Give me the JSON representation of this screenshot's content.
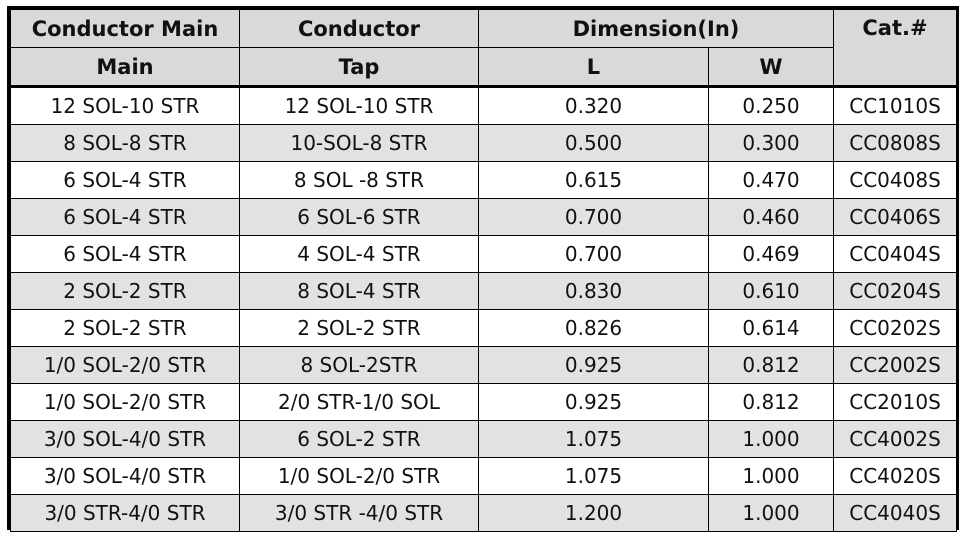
{
  "headers": {
    "conductor_main_line1": "Conductor Main",
    "conductor_main_line2": "Main",
    "conductor_tap_line1": "Conductor",
    "conductor_tap_line2": "Tap",
    "dimension": "Dimension(In)",
    "dim_l": "L",
    "dim_w": "W",
    "cat": "Cat.#"
  },
  "rows": [
    {
      "main": "12 SOL-10 STR",
      "tap": "12 SOL-10 STR",
      "l": "0.320",
      "w": "0.250",
      "cat": "CC1010S"
    },
    {
      "main": "8 SOL-8 STR",
      "tap": "10-SOL-8 STR",
      "l": "0.500",
      "w": "0.300",
      "cat": "CC0808S"
    },
    {
      "main": "6 SOL-4 STR",
      "tap": "8 SOL -8 STR",
      "l": "0.615",
      "w": "0.470",
      "cat": "CC0408S"
    },
    {
      "main": "6 SOL-4 STR",
      "tap": "6 SOL-6 STR",
      "l": "0.700",
      "w": "0.460",
      "cat": "CC0406S"
    },
    {
      "main": "6 SOL-4 STR",
      "tap": "4 SOL-4 STR",
      "l": "0.700",
      "w": "0.469",
      "cat": "CC0404S"
    },
    {
      "main": "2 SOL-2 STR",
      "tap": "8 SOL-4 STR",
      "l": "0.830",
      "w": "0.610",
      "cat": "CC0204S"
    },
    {
      "main": "2 SOL-2 STR",
      "tap": "2 SOL-2 STR",
      "l": "0.826",
      "w": "0.614",
      "cat": "CC0202S"
    },
    {
      "main": "1/0 SOL-2/0 STR",
      "tap": "8 SOL-2STR",
      "l": "0.925",
      "w": "0.812",
      "cat": "CC2002S"
    },
    {
      "main": "1/0 SOL-2/0 STR",
      "tap": "2/0 STR-1/0 SOL",
      "l": "0.925",
      "w": "0.812",
      "cat": "CC2010S"
    },
    {
      "main": "3/0 SOL-4/0 STR",
      "tap": "6 SOL-2 STR",
      "l": "1.075",
      "w": "1.000",
      "cat": "CC4002S"
    },
    {
      "main": "3/0 SOL-4/0 STR",
      "tap": "1/0 SOL-2/0 STR",
      "l": "1.075",
      "w": "1.000",
      "cat": "CC4020S"
    },
    {
      "main": "3/0 STR-4/0 STR",
      "tap": "3/0 STR -4/0 STR",
      "l": "1.200",
      "w": "1.000",
      "cat": "CC4040S"
    }
  ]
}
